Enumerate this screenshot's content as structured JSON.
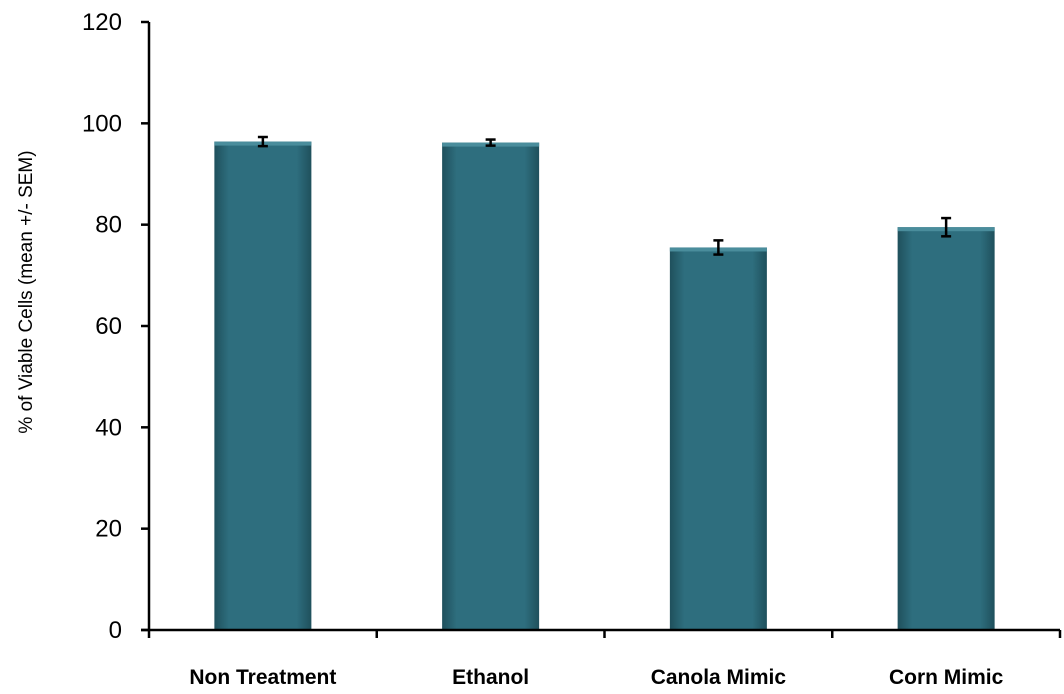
{
  "chart_data": {
    "type": "bar",
    "categories": [
      "Non Treatment",
      "Ethanol",
      "Canola Mimic",
      "Corn Mimic"
    ],
    "values": [
      96.4,
      96.2,
      75.5,
      79.5
    ],
    "errors": [
      0.9,
      0.6,
      1.4,
      1.8
    ],
    "title": "",
    "xlabel": "",
    "ylabel": "% of Viable Cells (mean +/- SEM)",
    "ylim": [
      0,
      120
    ],
    "yticks": [
      0,
      20,
      40,
      60,
      80,
      100,
      120
    ],
    "grid": false,
    "legend": "none",
    "colors": {
      "bar": "#2e6e7e",
      "bar_highlight": "#4a8d9c",
      "bar_shadow": "#1f505c",
      "axis": "#000000"
    }
  }
}
